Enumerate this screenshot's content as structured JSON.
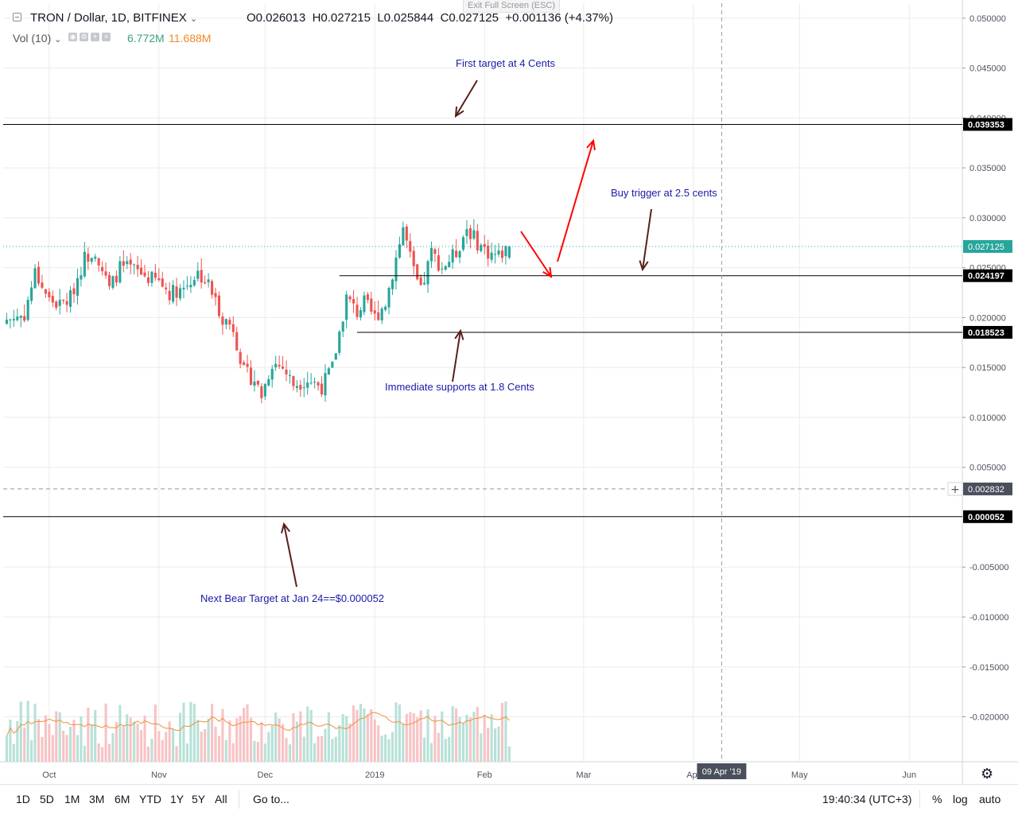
{
  "window": {
    "exit_fullscreen_hint": "Exit Full Screen (ESC)"
  },
  "header": {
    "symbol": "TRON / Dollar, 1D, BITFINEX",
    "open": "O0.026013",
    "high": "H0.027215",
    "low": "L0.025844",
    "close": "C0.027125",
    "change": "+0.001136 (+4.37%)",
    "vol_label": "Vol (10)",
    "vol_value": "6.772M",
    "vol_ma_value": "11.688M"
  },
  "chart_data": {
    "type": "candlestick",
    "title": "TRON / Dollar, 1D, BITFINEX",
    "ylim": [
      -0.0245,
      0.0515
    ],
    "x_dates": {
      "start": "2018-09-19",
      "end": "2019-02-08"
    },
    "x_range": [
      "2018-09-18",
      "2019-06-16"
    ],
    "y_tick_labels": [
      "0.050000",
      "0.045000",
      "0.040000",
      "0.035000",
      "0.030000",
      "0.025000",
      "0.020000",
      "0.015000",
      "0.010000",
      "0.005000",
      "-0.005000",
      "-0.010000",
      "-0.015000",
      "-0.020000"
    ],
    "y_tick_values": [
      0.05,
      0.045,
      0.04,
      0.035,
      0.03,
      0.025,
      0.02,
      0.015,
      0.01,
      0.005,
      -0.005,
      -0.01,
      -0.015,
      -0.02
    ],
    "x_tick_labels": [
      "Oct",
      "Nov",
      "Dec",
      "2019",
      "Feb",
      "Mar",
      "Apr",
      "May",
      "Jun"
    ],
    "x_tick_dates": [
      "2018-10-01",
      "2018-11-01",
      "2018-12-01",
      "2019-01-01",
      "2019-02-01",
      "2019-03-01",
      "2019-04-01",
      "2019-05-01",
      "2019-06-01"
    ],
    "close_path": [
      [
        "2018-09-19",
        0.0198
      ],
      [
        "2018-09-24",
        0.0203
      ],
      [
        "2018-09-27",
        0.0245
      ],
      [
        "2018-10-01",
        0.0218
      ],
      [
        "2018-10-04",
        0.0212
      ],
      [
        "2018-10-07",
        0.022
      ],
      [
        "2018-10-11",
        0.026
      ],
      [
        "2018-10-14",
        0.0268
      ],
      [
        "2018-10-18",
        0.0228
      ],
      [
        "2018-10-21",
        0.025
      ],
      [
        "2018-10-25",
        0.0248
      ],
      [
        "2018-10-29",
        0.024
      ],
      [
        "2018-11-01",
        0.0236
      ],
      [
        "2018-11-04",
        0.0225
      ],
      [
        "2018-11-08",
        0.023
      ],
      [
        "2018-11-12",
        0.0245
      ],
      [
        "2018-11-15",
        0.0233
      ],
      [
        "2018-11-19",
        0.02
      ],
      [
        "2018-11-22",
        0.019
      ],
      [
        "2018-11-25",
        0.0145
      ],
      [
        "2018-11-28",
        0.0138
      ],
      [
        "2018-11-30",
        0.0122
      ],
      [
        "2018-12-03",
        0.0155
      ],
      [
        "2018-12-06",
        0.015
      ],
      [
        "2018-12-09",
        0.0133
      ],
      [
        "2018-12-13",
        0.0138
      ],
      [
        "2018-12-17",
        0.0131
      ],
      [
        "2018-12-20",
        0.015
      ],
      [
        "2018-12-24",
        0.022
      ],
      [
        "2018-12-27",
        0.0205
      ],
      [
        "2018-12-29",
        0.0215
      ],
      [
        "2019-01-01",
        0.02
      ],
      [
        "2019-01-04",
        0.0215
      ],
      [
        "2019-01-07",
        0.026
      ],
      [
        "2019-01-09",
        0.029
      ],
      [
        "2019-01-12",
        0.0245
      ],
      [
        "2019-01-14",
        0.0225
      ],
      [
        "2019-01-17",
        0.0265
      ],
      [
        "2019-01-20",
        0.025
      ],
      [
        "2019-01-24",
        0.0265
      ],
      [
        "2019-01-27",
        0.029
      ],
      [
        "2019-01-30",
        0.0275
      ],
      [
        "2019-02-02",
        0.0265
      ],
      [
        "2019-02-05",
        0.0262
      ],
      [
        "2019-02-08",
        0.0271
      ]
    ],
    "volume_ma_label": "Vol (10)",
    "levels": [
      {
        "value": 0.039353,
        "label": "0.039353"
      },
      {
        "value": 0.024197,
        "label": "0.024197"
      },
      {
        "value": 0.018523,
        "label": "0.018523"
      },
      {
        "value": 5.2e-05,
        "label": "0.000052"
      }
    ],
    "last_price": {
      "value": 0.027125,
      "label": "0.027125"
    },
    "crosshair": {
      "price_label": "0.002832",
      "price_value": 0.002832,
      "date_label": "09 Apr '19",
      "date": "2019-04-09"
    },
    "annotations": [
      {
        "text": "First target at 4 Cents"
      },
      {
        "text": "Buy trigger at 2.5 cents"
      },
      {
        "text": "Immediate supports at 1.8 Cents"
      },
      {
        "text": "Next Bear Target at Jan 24==$0.000052"
      }
    ]
  },
  "colors": {
    "up": "#26a69a",
    "down": "#ef5350",
    "grid": "#ebebeb",
    "annotation": "#1a1aa8",
    "arrow_dark": "#5a1f1a",
    "arrow_red": "#ff0000",
    "vol_up": "#b7e1d7",
    "vol_down": "#f7c3c5",
    "vol_ma": "#f0913a"
  },
  "toolbar": {
    "timeframes": [
      "1D",
      "5D",
      "1M",
      "3M",
      "6M",
      "YTD",
      "1Y",
      "5Y",
      "All"
    ],
    "goto": "Go to...",
    "clock": "19:40:34 (UTC+3)",
    "percent": "%",
    "log": "log",
    "auto": "auto"
  }
}
